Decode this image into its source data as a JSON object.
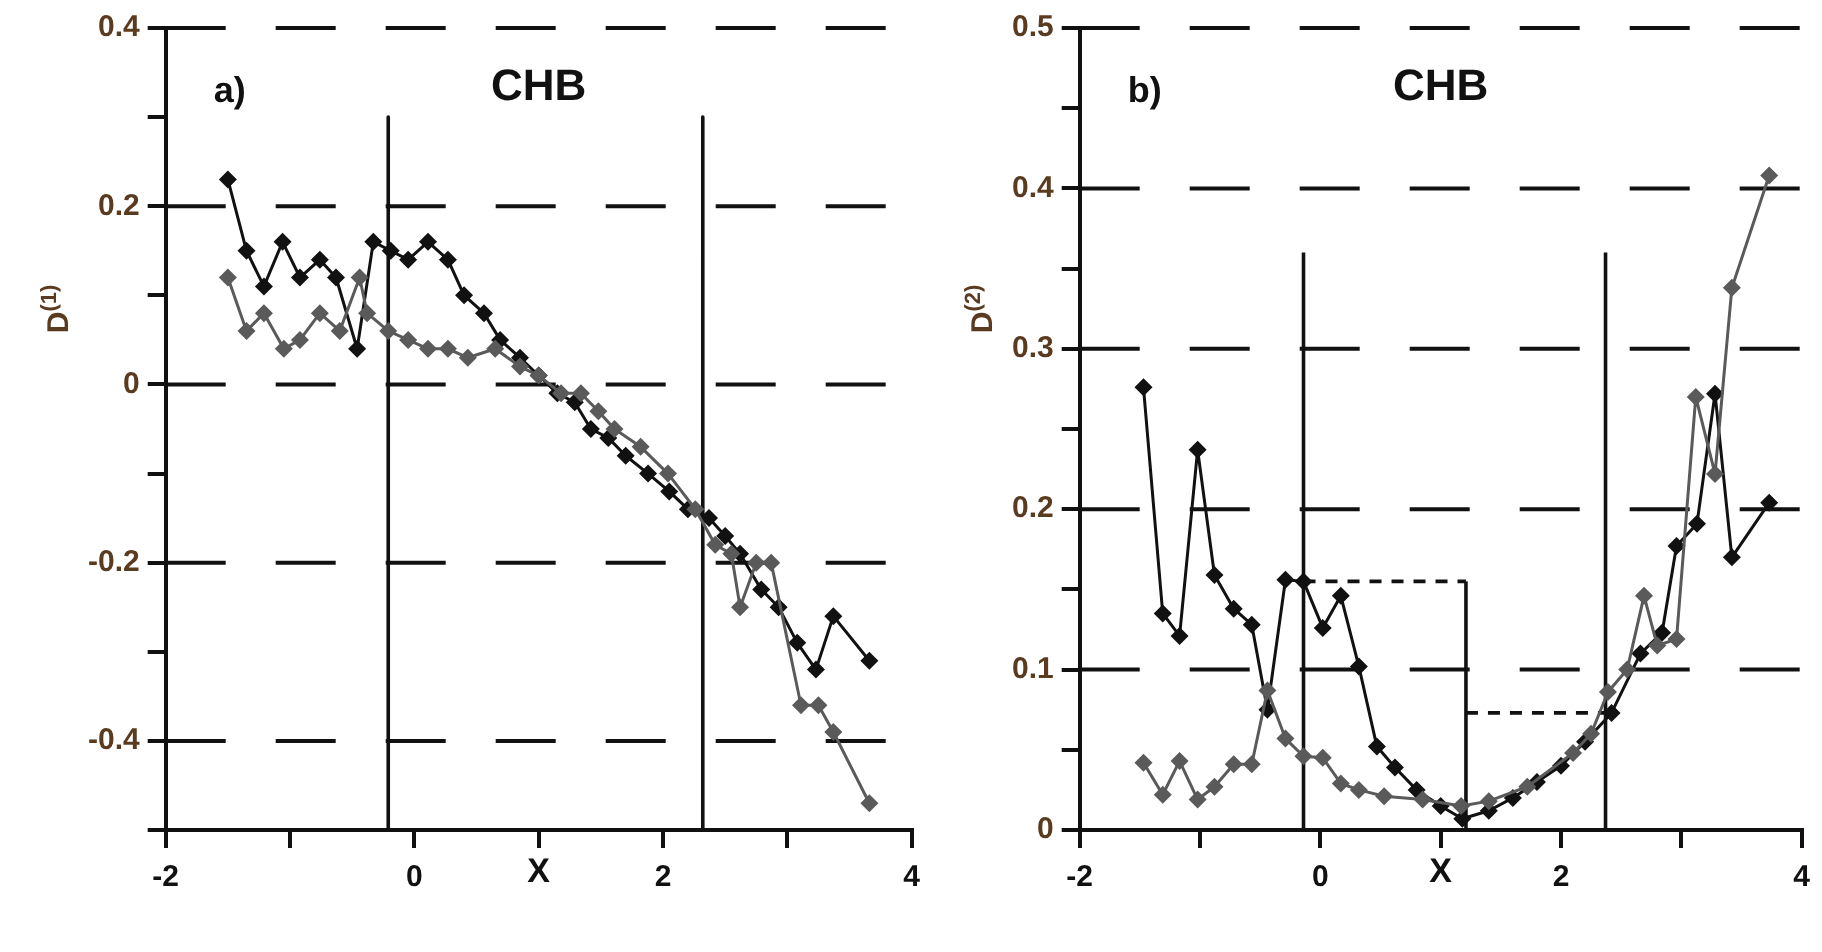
{
  "chart_data": [
    {
      "type": "line",
      "title": "CHB",
      "annotations": [
        "a)"
      ],
      "xlabel": "X",
      "ylabel": "D$^{(1)}$",
      "marker": "diamond",
      "grid": "y",
      "xlim": [
        -2,
        4
      ],
      "xticks": [
        -2,
        {
          "value": -1,
          "label": null
        },
        0,
        {
          "value": 1,
          "label": null
        },
        2,
        {
          "value": 3,
          "label": null
        },
        4
      ],
      "ylim": [
        -0.5,
        0.4
      ],
      "yticks": [
        {
          "value": -0.5,
          "label": null
        },
        -0.4,
        {
          "value": -0.3,
          "label": null
        },
        -0.2,
        {
          "value": -0.1,
          "label": null
        },
        0,
        {
          "value": 0.1,
          "label": null
        },
        0.2,
        {
          "value": 0.3,
          "label": null
        },
        0.4
      ],
      "series": [
        {
          "color": "#5a5a5a",
          "x": [
            -1.5,
            -1.35,
            -1.21,
            -1.05,
            -0.92,
            -0.76,
            -0.6,
            -0.44,
            -0.38,
            -0.21,
            -0.05,
            0.11,
            0.27,
            0.43,
            0.65,
            0.85,
            1.0,
            1.18,
            1.34,
            1.48,
            1.61,
            1.82,
            2.04,
            2.26,
            2.42,
            2.55,
            2.62,
            2.75,
            2.87,
            3.11,
            3.25,
            3.37,
            3.66
          ],
          "values": [
            0.12,
            0.06,
            0.08,
            0.04,
            0.05,
            0.08,
            0.06,
            0.12,
            0.08,
            0.06,
            0.05,
            0.04,
            0.04,
            0.03,
            0.04,
            0.02,
            0.01,
            -0.01,
            -0.01,
            -0.03,
            -0.05,
            -0.07,
            -0.1,
            -0.14,
            -0.18,
            -0.19,
            -0.25,
            -0.2,
            -0.2,
            -0.36,
            -0.36,
            -0.39,
            -0.47
          ]
        },
        {
          "color": "#111111",
          "x": [
            -1.5,
            -1.35,
            -1.21,
            -1.06,
            -0.92,
            -0.76,
            -0.63,
            -0.46,
            -0.33,
            -0.19,
            -0.05,
            0.11,
            0.27,
            0.4,
            0.56,
            0.69,
            0.85,
            1.0,
            1.15,
            1.29,
            1.42,
            1.56,
            1.7,
            1.88,
            2.05,
            2.2,
            2.37,
            2.5,
            2.62,
            2.79,
            2.93,
            3.08,
            3.23,
            3.37,
            3.66
          ],
          "values": [
            0.23,
            0.15,
            0.11,
            0.16,
            0.12,
            0.14,
            0.12,
            0.04,
            0.16,
            0.15,
            0.14,
            0.16,
            0.14,
            0.1,
            0.08,
            0.05,
            0.03,
            0.01,
            -0.01,
            -0.02,
            -0.05,
            -0.06,
            -0.08,
            -0.1,
            -0.12,
            -0.14,
            -0.15,
            -0.17,
            -0.19,
            -0.23,
            -0.25,
            -0.29,
            -0.32,
            -0.26,
            -0.31
          ]
        },
        {
          "color": "#111111",
          "marker": "none",
          "line_style": "solid",
          "x": [
            -0.21,
            -0.21
          ],
          "values": [
            0.3,
            -0.5
          ]
        },
        {
          "color": "#111111",
          "marker": "none",
          "line_style": "solid",
          "x": [
            2.32,
            2.32
          ],
          "values": [
            0.3,
            -0.5
          ]
        }
      ]
    },
    {
      "type": "line",
      "title": "CHB",
      "annotations": [
        "b)"
      ],
      "xlabel": "X",
      "ylabel": "D$^{(2)}$",
      "marker": "diamond",
      "grid": "y",
      "xlim": [
        -2,
        4
      ],
      "xticks": [
        -2,
        {
          "value": -1,
          "label": null
        },
        0,
        {
          "value": 1,
          "label": null
        },
        2,
        {
          "value": 3,
          "label": null
        },
        4
      ],
      "ylim": [
        0,
        0.5
      ],
      "yticks": [
        0,
        {
          "value": 0.05,
          "label": null
        },
        0.1,
        {
          "value": 0.15,
          "label": null
        },
        0.2,
        {
          "value": 0.25,
          "label": null
        },
        0.3,
        {
          "value": 0.35,
          "label": null
        },
        0.4,
        {
          "value": 0.45,
          "label": null
        },
        0.5
      ],
      "series": [
        {
          "color": "#5a5a5a",
          "x": [
            -1.47,
            -1.31,
            -1.17,
            -1.02,
            -0.88,
            -0.72,
            -0.57,
            -0.44,
            -0.29,
            -0.14,
            0.02,
            0.17,
            0.32,
            0.53,
            0.85,
            1.17,
            1.4,
            1.72,
            2.1,
            2.25,
            2.39,
            2.55,
            2.69,
            2.8,
            2.96,
            3.12,
            3.28,
            3.42,
            3.73
          ],
          "values": [
            0.042,
            0.022,
            0.043,
            0.019,
            0.027,
            0.041,
            0.041,
            0.087,
            0.057,
            0.046,
            0.045,
            0.029,
            0.025,
            0.021,
            0.019,
            0.015,
            0.018,
            0.027,
            0.048,
            0.06,
            0.086,
            0.1,
            0.146,
            0.115,
            0.119,
            0.27,
            0.222,
            0.338,
            0.408
          ]
        },
        {
          "color": "#111111",
          "x": [
            -1.47,
            -1.31,
            -1.17,
            -1.02,
            -0.88,
            -0.72,
            -0.57,
            -0.44,
            -0.29,
            -0.14,
            0.02,
            0.17,
            0.32,
            0.47,
            0.62,
            0.8,
            1.0,
            1.18,
            1.4,
            1.6,
            1.8,
            2.0,
            2.2,
            2.42,
            2.66,
            2.84,
            2.96,
            3.13,
            3.28,
            3.42,
            3.73
          ],
          "values": [
            0.276,
            0.135,
            0.121,
            0.237,
            0.159,
            0.138,
            0.128,
            0.075,
            0.156,
            0.155,
            0.126,
            0.146,
            0.102,
            0.052,
            0.039,
            0.025,
            0.015,
            0.007,
            0.012,
            0.02,
            0.03,
            0.04,
            0.055,
            0.073,
            0.11,
            0.123,
            0.177,
            0.191,
            0.272,
            0.17,
            0.204
          ]
        },
        {
          "color": "#111111",
          "marker": "none",
          "line_style": "solid",
          "x": [
            -0.14,
            -0.14
          ],
          "values": [
            0,
            0.36
          ]
        },
        {
          "color": "#111111",
          "marker": "none",
          "line_style": "solid",
          "x": [
            2.37,
            2.37
          ],
          "values": [
            0,
            0.36
          ]
        },
        {
          "color": "#111111",
          "marker": "none",
          "line_style": "dashed",
          "x": [
            -0.14,
            1.21
          ],
          "values": [
            0.155,
            0.155
          ]
        },
        {
          "color": "#111111",
          "marker": "none",
          "line_style": "solid",
          "x": [
            1.21,
            1.21
          ],
          "values": [
            0,
            0.155
          ]
        },
        {
          "color": "#111111",
          "marker": "none",
          "line_style": "dashed",
          "x": [
            1.21,
            2.37
          ],
          "values": [
            0.073,
            0.073
          ]
        }
      ]
    }
  ]
}
